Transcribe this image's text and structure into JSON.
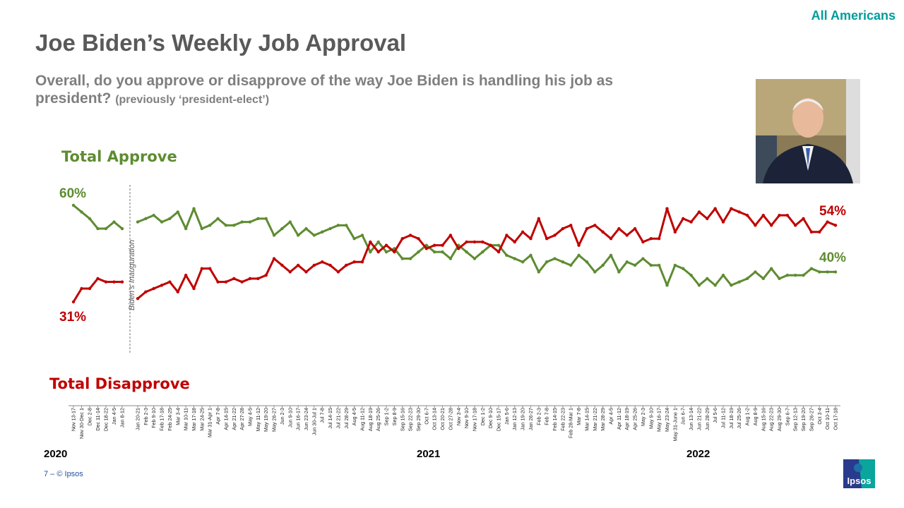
{
  "header": {
    "title": "Joe Biden’s Weekly Job Approval",
    "audience": "All Americans",
    "question": "Overall, do you approve or disapprove of the way Joe Biden is handling his job as president?",
    "question_note": "(previously ‘president-elect’)"
  },
  "footer": {
    "page": "7 –  © Ipsos",
    "logo_text": "Ipsos"
  },
  "colors": {
    "approve": "#5E8C31",
    "disapprove": "#C00000",
    "title": "#595959",
    "accent": "#009D9A"
  },
  "chart_data": {
    "type": "line",
    "annotation": "Biden’s Inauguration",
    "years": [
      "2020",
      "2021",
      "2022"
    ],
    "series_labels": {
      "approve": "Total Approve",
      "disapprove": "Total Disapprove"
    },
    "end_labels": {
      "approve_start": "60%",
      "disapprove_start": "31%",
      "approve_end": "40%",
      "disapprove_end": "54%"
    },
    "pre_inauguration": {
      "categories": [
        "Nov 13-17",
        "Nov 30-Dec 1",
        "Dec 2-8",
        "Dec 11-14",
        "Dec 18-22",
        "Jan 4-5",
        "Jan 8-12"
      ],
      "approve": [
        60,
        58,
        56,
        53,
        53,
        55,
        53
      ],
      "disapprove": [
        31,
        35,
        35,
        38,
        37,
        37,
        37
      ]
    },
    "post_inauguration": {
      "categories": [
        "Jan 20-21",
        "Feb 2-3",
        "Feb 9-10",
        "Feb 17-18",
        "Feb 24-25",
        "Mar 3-4",
        "Mar 10-11",
        "Mar 17-18",
        "Mar 24-25",
        "Mar 31-Apr 1",
        "Apr 7-8",
        "Apr 14-15",
        "Apr 21-22",
        "Apr 27-28",
        "May 4-5",
        "May 11-12",
        "May 19-20",
        "May 26-27",
        "Jun 2-3",
        "Jun 9-10",
        "Jun 16-17",
        "Jun 23-24",
        "Jun 30-Jul 1",
        "Jul 7-8",
        "Jul 14-15",
        "Jul 21-22",
        "Jul 28-29",
        "Aug 4-5",
        "Aug 11-12",
        "Aug 18-19",
        "Aug 25-26",
        "Sep 1-2",
        "Sep 8-9",
        "Sep 15-16",
        "Sep 22-23",
        "Sep 29-30",
        "Oct 6-7",
        "Oct 13-14",
        "Oct 20-21",
        "Oct 27-28",
        "Nov 3-4",
        "Nov 9-10",
        "Nov 17-18",
        "Dec 1-2",
        "Dec 9-10",
        "Dec 15-17",
        "Jan 5-6",
        "Jan 12-13",
        "Jan 19-20",
        "Jan 26-27",
        "Feb 2-3",
        "Feb 7-8",
        "Feb 14-15",
        "Feb 22-23",
        "Feb 28-Mar 1",
        "Mar 7-8",
        "Mar 14-15",
        "Mar 21-22",
        "Mar 28-29",
        "Apr 4-5",
        "Apr 11-12",
        "Apr 18-19",
        "Apr 25-26",
        "May 2-3",
        "May 9-10",
        "May 16-17",
        "May 23-24",
        "May 31-June 1",
        "Jun 6-7",
        "Jun 13-14",
        "Jun 21-22",
        "Jun 28-29",
        "Jul 5-6",
        "Jul 11-12",
        "Jul 18-19",
        "Jul 25-26",
        "Aug 1-2",
        "Aug 8-9",
        "Aug 15-16",
        "Aug 22-23",
        "Aug 29-30",
        "Sep 6-7",
        "Sep 12-13",
        "Sep 19-20",
        "Sep 26-27",
        "Oct 3-4",
        "Oct 10-11",
        "Oct 17-18"
      ],
      "approve": [
        55,
        56,
        57,
        55,
        56,
        58,
        53,
        59,
        53,
        54,
        56,
        54,
        54,
        55,
        55,
        56,
        56,
        51,
        53,
        55,
        51,
        53,
        51,
        52,
        53,
        54,
        54,
        50,
        51,
        46,
        49,
        46,
        47,
        44,
        44,
        46,
        48,
        46,
        46,
        44,
        48,
        46,
        44,
        46,
        48,
        48,
        45,
        44,
        43,
        45,
        40,
        43,
        44,
        43,
        42,
        45,
        43,
        40,
        42,
        45,
        40,
        43,
        42,
        44,
        42,
        42,
        36,
        42,
        41,
        39,
        36,
        38,
        36,
        39,
        36,
        37,
        38,
        40,
        38,
        41,
        38,
        39,
        39,
        39,
        41,
        40,
        40,
        40
      ],
      "disapprove": [
        32,
        34,
        35,
        36,
        37,
        34,
        39,
        35,
        41,
        41,
        37,
        37,
        38,
        37,
        38,
        38,
        39,
        44,
        42,
        40,
        42,
        40,
        42,
        43,
        42,
        40,
        42,
        43,
        43,
        49,
        46,
        48,
        46,
        50,
        51,
        50,
        47,
        48,
        48,
        51,
        47,
        49,
        49,
        49,
        48,
        46,
        51,
        49,
        52,
        50,
        56,
        50,
        51,
        53,
        54,
        48,
        53,
        54,
        52,
        50,
        53,
        51,
        53,
        49,
        50,
        50,
        59,
        52,
        56,
        55,
        58,
        56,
        59,
        55,
        59,
        58,
        57,
        54,
        57,
        54,
        57,
        57,
        54,
        56,
        52,
        52,
        55,
        54
      ]
    }
  }
}
